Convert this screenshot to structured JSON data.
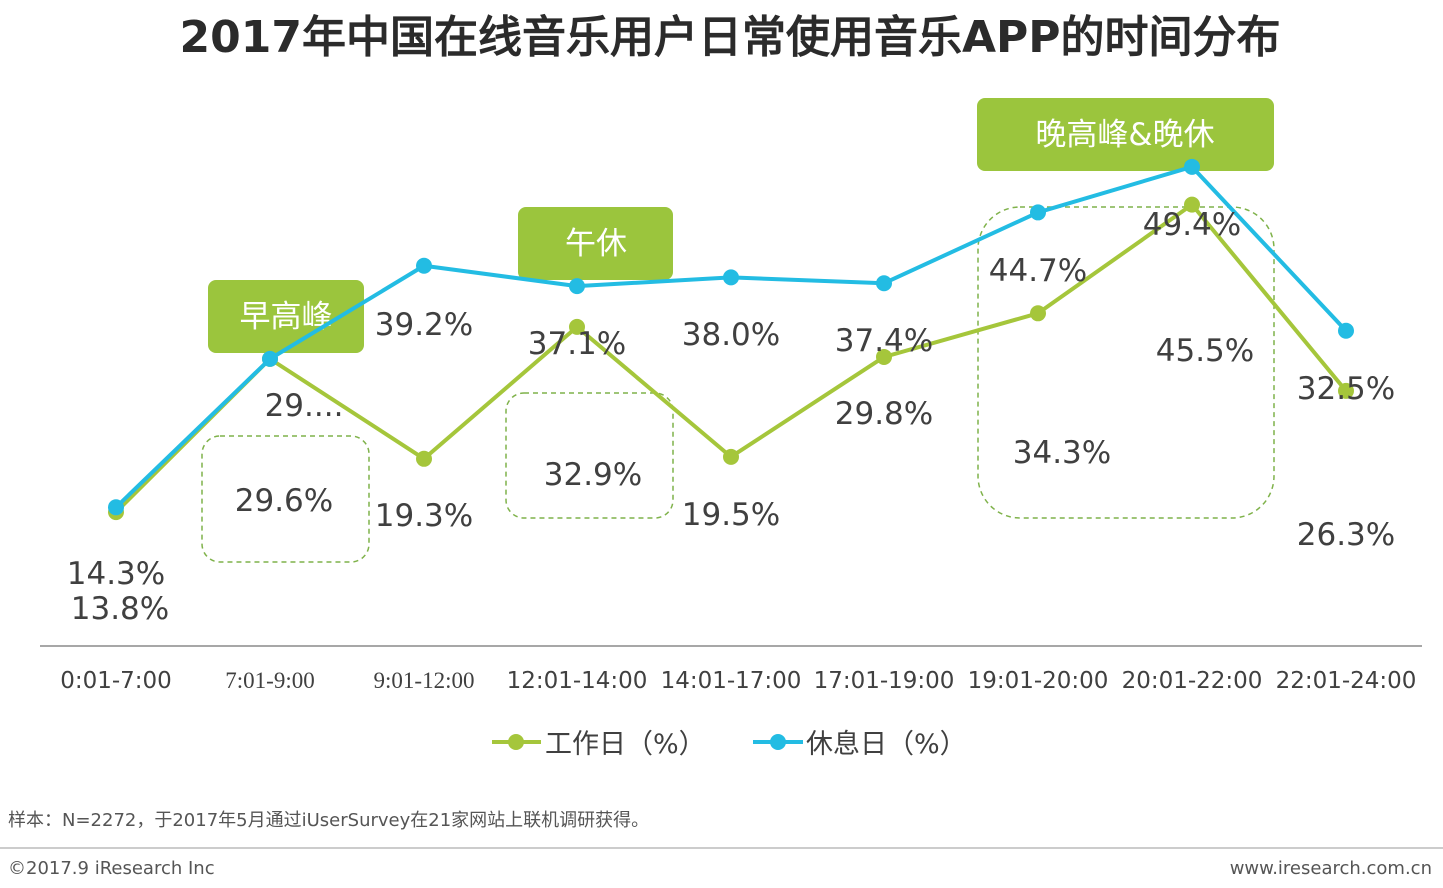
{
  "chart_data": {
    "type": "line",
    "title": "2017年中国在线音乐用户日常使用音乐APP的时间分布",
    "categories": [
      "0:01-7:00",
      "7:01-9:00",
      "9:01-12:00",
      "12:01-14:00",
      "14:01-17:00",
      "17:01-19:00",
      "19:01-20:00",
      "20:01-22:00",
      "22:01-24:00"
    ],
    "series": [
      {
        "name": "工作日（%）",
        "color": "#a5c63b",
        "values": [
          13.8,
          29.6,
          19.3,
          32.9,
          19.5,
          29.8,
          34.3,
          45.5,
          26.3
        ],
        "labels": [
          "13.8%",
          "29.6%",
          "19.3%",
          "32.9%",
          "19.5%",
          "29.8%",
          "34.3%",
          "45.5%",
          "26.3%"
        ]
      },
      {
        "name": "休息日（%）",
        "color": "#23bce3",
        "values": [
          14.3,
          29.6,
          39.2,
          37.1,
          38.0,
          37.4,
          44.7,
          49.4,
          32.5
        ],
        "labels": [
          "14.3%",
          "29....",
          "39.2%",
          "37.1%",
          "38.0%",
          "37.4%",
          "44.7%",
          "49.4%",
          "32.5%"
        ]
      }
    ],
    "ylim": [
      0,
      60
    ],
    "xlabel": "",
    "ylabel": "",
    "grid": false,
    "legend": "bottom",
    "highlights": [
      {
        "label": "早高峰",
        "category": "7:01-9:00"
      },
      {
        "label": "午休",
        "category": "12:01-14:00"
      },
      {
        "label": "晚高峰&晚休",
        "category": "19:01-20:00 / 20:01-22:00"
      }
    ],
    "highlight_color": "#9bc53d"
  },
  "footer": {
    "note": "样本：N=2272，于2017年5月通过iUserSurvey在21家网站上联机调研获得。",
    "copyright": "©2017.9 iResearch Inc",
    "url": "www.iresearch.com.cn"
  }
}
